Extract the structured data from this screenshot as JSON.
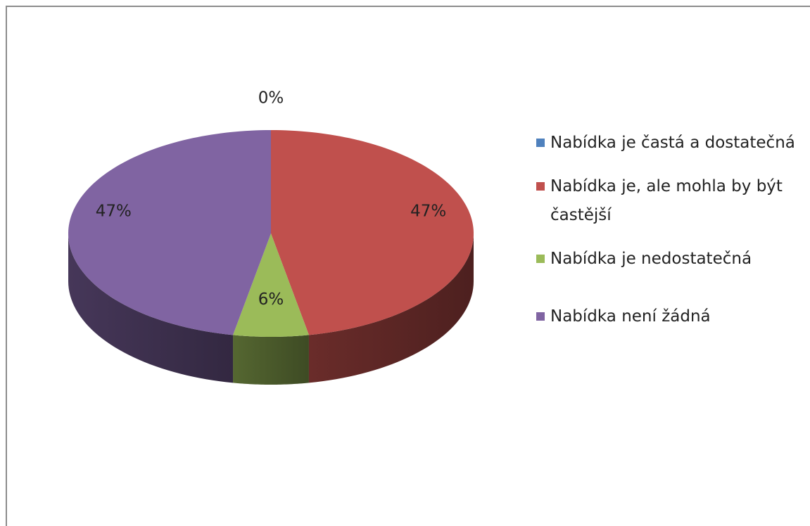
{
  "chart_data": {
    "type": "pie",
    "categories": [
      "Nabídka je častá a dostatečná",
      "Nabídka je, ale mohla by být častější",
      "Nabídka je nedostatečná",
      "Nabídka není žádná"
    ],
    "values": [
      0,
      47,
      6,
      47
    ],
    "value_labels": [
      "0%",
      "47%",
      "6%",
      "47%"
    ],
    "colors": [
      "#4f81bd",
      "#c0504d",
      "#9bbb59",
      "#8064a2"
    ],
    "legend": "right"
  }
}
